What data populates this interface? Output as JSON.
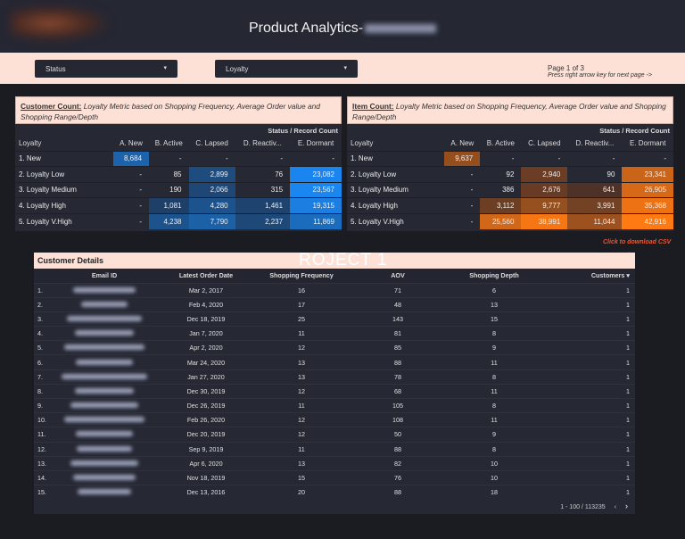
{
  "header": {
    "title": "Product Analytics-"
  },
  "filters": {
    "status": "Status",
    "loyalty": "Loyalty"
  },
  "pagination": {
    "page": "Page 1 of 3",
    "hint": "Press right arrow key for next page ->"
  },
  "colors": {
    "blue_max": "#1a86f0",
    "blue_min": "#1f3654",
    "orange_max": "#ff7a12",
    "orange_min": "#4a3028",
    "pink": "#fde0d6"
  },
  "pivots": [
    {
      "title_bold": "Customer Count:",
      "title_rest": " Loyalty Metric based on Shopping Frequency, Average Order value and Shopping Range/Depth",
      "subheader": "Status / Record Count",
      "row_header": "Loyalty",
      "columns": [
        "A. New",
        "B. Active",
        "C. Lapsed",
        "D. Reactiv...",
        "E. Dormant"
      ],
      "scale": "blue",
      "rows": [
        {
          "label": "1. New",
          "values": [
            "8,684",
            "-",
            "-",
            "-",
            "-"
          ]
        },
        {
          "label": "2. Loyalty Low",
          "values": [
            "-",
            "85",
            "2,899",
            "76",
            "23,082"
          ]
        },
        {
          "label": "3. Loyalty Medium",
          "values": [
            "-",
            "190",
            "2,066",
            "315",
            "23,567"
          ]
        },
        {
          "label": "4. Loyalty High",
          "values": [
            "-",
            "1,081",
            "4,280",
            "1,461",
            "19,315"
          ]
        },
        {
          "label": "5. Loyalty V.High",
          "values": [
            "-",
            "4,238",
            "7,790",
            "2,237",
            "11,869"
          ]
        }
      ]
    },
    {
      "title_bold": "Item Count:",
      "title_rest": " Loyalty Metric based on Shopping Frequency, Average Order value and Shopping Range/Depth",
      "subheader": "Status / Record Count",
      "row_header": "Loyalty",
      "columns": [
        "A. New",
        "B. Active",
        "C. Lapsed",
        "D. Reactiv...",
        "E. Dormant"
      ],
      "scale": "orange",
      "rows": [
        {
          "label": "1. New",
          "values": [
            "9,637",
            "-",
            "-",
            "-",
            "-"
          ]
        },
        {
          "label": "2. Loyalty Low",
          "values": [
            "-",
            "92",
            "2,940",
            "90",
            "23,341"
          ]
        },
        {
          "label": "3. Loyalty Medium",
          "values": [
            "-",
            "386",
            "2,676",
            "641",
            "26,905"
          ]
        },
        {
          "label": "4. Loyalty High",
          "values": [
            "-",
            "3,112",
            "9,777",
            "3,991",
            "35,368"
          ]
        },
        {
          "label": "5. Loyalty V.High",
          "values": [
            "-",
            "25,560",
            "38,991",
            "11,044",
            "42,916"
          ]
        }
      ]
    }
  ],
  "details": {
    "title": "Customer Details",
    "watermark": "ROJECT 1",
    "download_hint": "Click to download CSV",
    "columns": [
      "Email ID",
      "Latest Order Date",
      "Shopping Frequency",
      "AOV",
      "Shopping Depth",
      "Customers ▾"
    ],
    "rows": [
      [
        "1.",
        "Mar 2, 2017",
        "16",
        "71",
        "6",
        "1"
      ],
      [
        "2.",
        "Feb 4, 2020",
        "17",
        "48",
        "13",
        "1"
      ],
      [
        "3.",
        "Dec 18, 2019",
        "25",
        "143",
        "15",
        "1"
      ],
      [
        "4.",
        "Jan 7, 2020",
        "11",
        "81",
        "8",
        "1"
      ],
      [
        "5.",
        "Apr 2, 2020",
        "12",
        "85",
        "9",
        "1"
      ],
      [
        "6.",
        "Mar 24, 2020",
        "13",
        "88",
        "11",
        "1"
      ],
      [
        "7.",
        "Jan 27, 2020",
        "13",
        "78",
        "8",
        "1"
      ],
      [
        "8.",
        "Dec 30, 2019",
        "12",
        "68",
        "11",
        "1"
      ],
      [
        "9.",
        "Dec 26, 2019",
        "11",
        "105",
        "8",
        "1"
      ],
      [
        "10.",
        "Feb 26, 2020",
        "12",
        "108",
        "11",
        "1"
      ],
      [
        "11.",
        "Dec 20, 2019",
        "12",
        "50",
        "9",
        "1"
      ],
      [
        "12.",
        "Sep 9, 2019",
        "11",
        "88",
        "8",
        "1"
      ],
      [
        "13.",
        "Apr 6, 2020",
        "13",
        "82",
        "10",
        "1"
      ],
      [
        "14.",
        "Nov 18, 2019",
        "15",
        "76",
        "10",
        "1"
      ],
      [
        "15.",
        "Dec 13, 2016",
        "20",
        "88",
        "18",
        "1"
      ]
    ],
    "range": "1 - 100 / 113235"
  }
}
